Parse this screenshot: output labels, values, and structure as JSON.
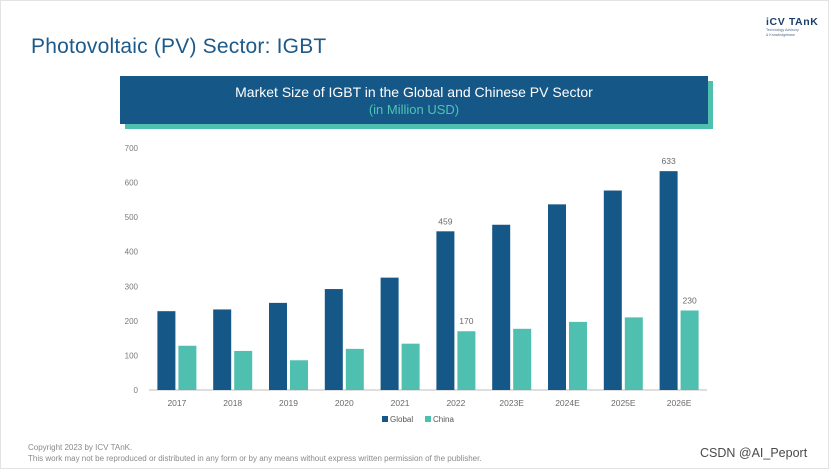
{
  "header": {
    "title": "Photovoltaic (PV) Sector: IGBT",
    "logo_name": "iCV TAnK",
    "logo_line1": "Technology Advisory",
    "logo_line2": "& Knowledgebase"
  },
  "banner": {
    "title": "Market Size of IGBT in the Global and Chinese PV Sector",
    "subtitle": "(in Million USD)"
  },
  "colors": {
    "global": "#155787",
    "china": "#4fbfaf",
    "banner_bg": "#155787",
    "banner_shadow": "#4fbfaf"
  },
  "chart_data": {
    "type": "bar",
    "categories": [
      "2017",
      "2018",
      "2019",
      "2020",
      "2021",
      "2022",
      "2023E",
      "2024E",
      "2025E",
      "2026E"
    ],
    "series": [
      {
        "name": "Global",
        "values": [
          228,
          233,
          252,
          292,
          325,
          459,
          478,
          537,
          577,
          633
        ]
      },
      {
        "name": "China",
        "values": [
          128,
          113,
          86,
          119,
          134,
          170,
          177,
          197,
          210,
          230
        ]
      }
    ],
    "data_labels": [
      {
        "series": "Global",
        "category": "2022",
        "text": "459"
      },
      {
        "series": "China",
        "category": "2022",
        "text": "170"
      },
      {
        "series": "Global",
        "category": "2026E",
        "text": "633"
      },
      {
        "series": "China",
        "category": "2026E",
        "text": "230"
      }
    ],
    "yticks": [
      0,
      100,
      200,
      300,
      400,
      500,
      600,
      700
    ],
    "ylim": [
      0,
      700
    ],
    "grid": false,
    "legend_position": "bottom-center"
  },
  "footer": {
    "copyright_line1": "Copyright  2023 by ICV TAnK.",
    "copyright_line2": "This work may not be reproduced or distributed in any form or by any means without express written permission of the publisher.",
    "watermark": "CSDN @AI_Peport"
  }
}
